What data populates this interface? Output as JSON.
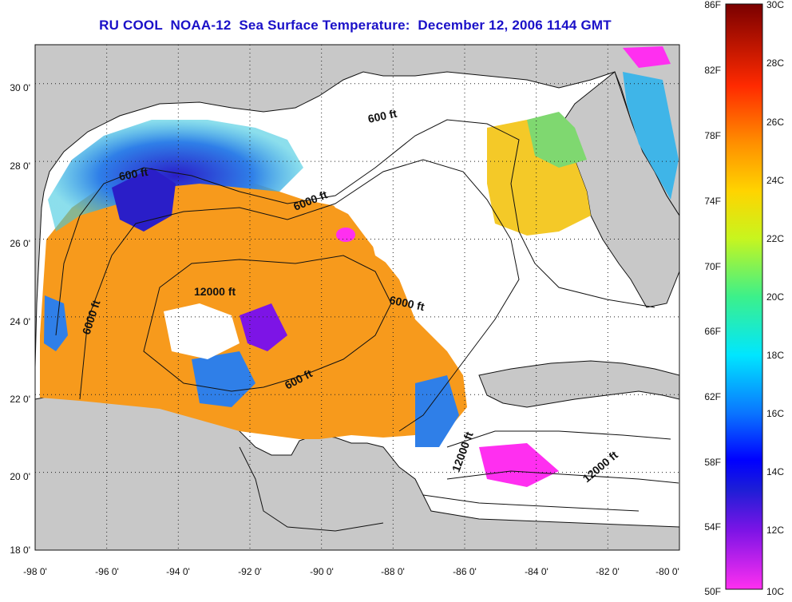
{
  "title": "RU COOL  NOAA-12  Sea Surface Temperature:  December 12, 2006 1144 GMT",
  "map": {
    "lon_ticks": [
      "-98 0'",
      "-96 0'",
      "-94 0'",
      "-92 0'",
      "-90 0'",
      "-88 0'",
      "-86 0'",
      "-84 0'",
      "-82 0'",
      "-80 0'"
    ],
    "lat_ticks": [
      "30 0'",
      "28 0'",
      "26 0'",
      "24 0'",
      "22 0'",
      "20 0'",
      "18 0'"
    ],
    "lon_range": [
      -98,
      -80
    ],
    "lat_range": [
      18,
      31
    ],
    "grid": "dotted",
    "contour_labels": [
      "600 ft",
      "600 ft",
      "6000 ft",
      "12000 ft",
      "6000 ft",
      "6000 ft",
      "600 ft",
      "12000 ft",
      "12000 ft"
    ],
    "colors": {
      "land": "#c8c8c8",
      "cloud": "#ffffff",
      "sst_warm": "#f79a1c",
      "sst_cool": "#2f7fe8",
      "sst_cold": "#2a1ec8"
    }
  },
  "colorbar": {
    "fahrenheit": [
      "86F",
      "82F",
      "78F",
      "74F",
      "70F",
      "66F",
      "62F",
      "58F",
      "54F",
      "50F"
    ],
    "celsius": [
      "30C",
      "28C",
      "26C",
      "24C",
      "22C",
      "20C",
      "18C",
      "16C",
      "14C",
      "12C",
      "10C"
    ]
  }
}
